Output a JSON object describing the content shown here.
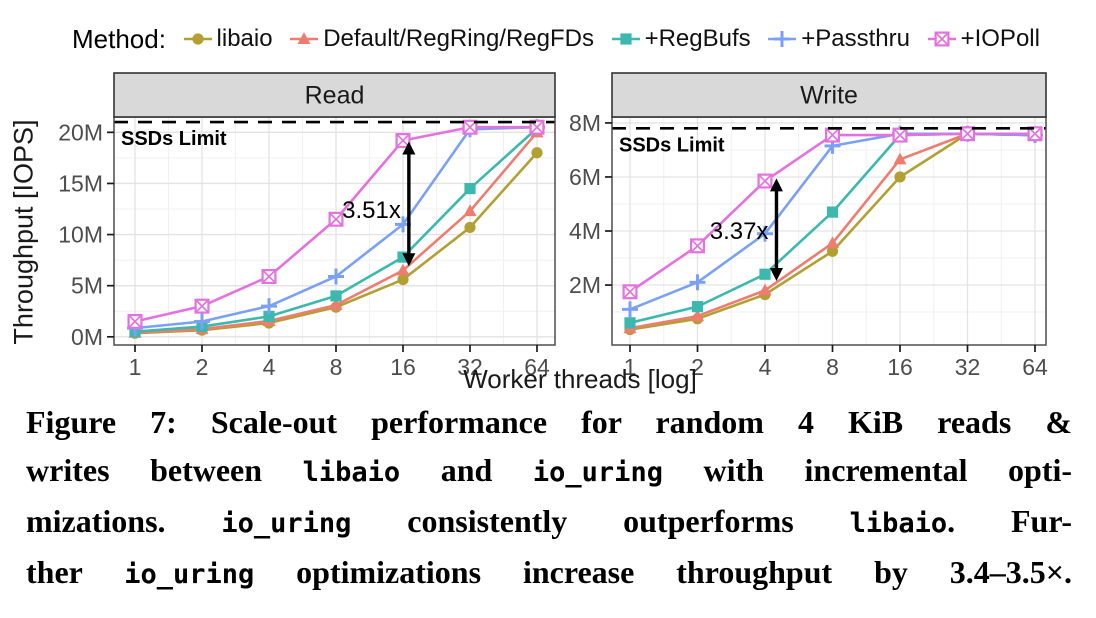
{
  "figure": {
    "legend": {
      "label": "Method:",
      "items": [
        {
          "name": "libaio",
          "marker": "circle",
          "color": "#b3a033"
        },
        {
          "name": "Default/RegRing/RegFDs",
          "marker": "triangle",
          "color": "#ee7d70"
        },
        {
          "name": "+RegBufs",
          "marker": "square",
          "color": "#3cb8ae"
        },
        {
          "name": "+Passthru",
          "marker": "plus",
          "color": "#7ba1f7"
        },
        {
          "name": "+IOPoll",
          "marker": "boxed-x",
          "color": "#e372df"
        }
      ]
    },
    "y_axis_title": "Throughput [IOPS]",
    "x_axis_title": "Worker threads [log]",
    "strip_color": "#d9d9d9",
    "limit_line_color": "#000000"
  },
  "chart_data": [
    {
      "type": "line",
      "title": "Read",
      "x": [
        1,
        2,
        4,
        8,
        16,
        32,
        64
      ],
      "x_scale": "log2",
      "xlabel": "Worker threads [log]",
      "ylabel": "Throughput [IOPS]",
      "unit": "M IOPS",
      "ylim": [
        -0.8,
        21.5
      ],
      "yticks": [
        0,
        5,
        10,
        15,
        20
      ],
      "ytick_labels": [
        "0M",
        "5M",
        "10M",
        "15M",
        "20M"
      ],
      "xtick_labels": [
        "1",
        "2",
        "4",
        "8",
        "16",
        "32",
        "64"
      ],
      "grid": true,
      "ssd_limit": {
        "value": 21,
        "label": "SSDs Limit"
      },
      "annotation": {
        "text": "3.51x",
        "x": 17,
        "y_top": 19.1,
        "y_bottom": 6.9,
        "label_y": 12.4
      },
      "series": [
        {
          "name": "libaio",
          "values": [
            0.35,
            0.65,
            1.35,
            2.9,
            5.6,
            10.7,
            18.0
          ]
        },
        {
          "name": "Default/RegRing/RegFDs",
          "values": [
            0.4,
            0.75,
            1.55,
            3.1,
            6.5,
            12.3,
            20.0
          ]
        },
        {
          "name": "+RegBufs",
          "values": [
            0.5,
            1.0,
            2.0,
            4.0,
            7.8,
            14.5,
            20.4
          ]
        },
        {
          "name": "+Passthru",
          "values": [
            0.85,
            1.5,
            3.0,
            5.9,
            11.0,
            20.3,
            20.5
          ]
        },
        {
          "name": "+IOPoll",
          "values": [
            1.5,
            3.0,
            5.9,
            11.5,
            19.2,
            20.5,
            20.5
          ]
        }
      ]
    },
    {
      "type": "line",
      "title": "Write",
      "x": [
        1,
        2,
        4,
        8,
        16,
        32,
        64
      ],
      "x_scale": "log2",
      "xlabel": "Worker threads [log]",
      "ylabel": "Throughput [IOPS]",
      "unit": "M IOPS",
      "ylim": [
        -0.22,
        8.22
      ],
      "yticks": [
        2,
        4,
        6,
        8
      ],
      "ytick_labels": [
        "2M",
        "4M",
        "6M",
        "8M"
      ],
      "xtick_labels": [
        "1",
        "2",
        "4",
        "8",
        "16",
        "32",
        "64"
      ],
      "grid": true,
      "ssd_limit": {
        "value": 7.8,
        "label": "SSDs Limit"
      },
      "annotation": {
        "text": "3.37x",
        "x": 4.5,
        "y_top": 5.95,
        "y_bottom": 2.15,
        "label_y": 4.0
      },
      "series": [
        {
          "name": "libaio",
          "values": [
            0.35,
            0.75,
            1.65,
            3.25,
            6.0,
            7.6,
            7.55
          ]
        },
        {
          "name": "Default/RegRing/RegFDs",
          "values": [
            0.4,
            0.85,
            1.8,
            3.55,
            6.65,
            7.6,
            7.55
          ]
        },
        {
          "name": "+RegBufs",
          "values": [
            0.6,
            1.2,
            2.4,
            4.7,
            7.55,
            7.6,
            7.55
          ]
        },
        {
          "name": "+Passthru",
          "values": [
            1.1,
            2.1,
            3.9,
            7.15,
            7.6,
            7.6,
            7.55
          ]
        },
        {
          "name": "+IOPoll",
          "values": [
            1.75,
            3.45,
            5.85,
            7.55,
            7.55,
            7.6,
            7.6
          ]
        }
      ]
    }
  ],
  "caption": {
    "lines": [
      {
        "segments": [
          {
            "text": "Figure 7: Scale-out performance for random 4 KiB reads &",
            "code": false
          }
        ]
      },
      {
        "segments": [
          {
            "text": "writes between ",
            "code": false
          },
          {
            "text": "libaio",
            "code": true
          },
          {
            "text": " and ",
            "code": false
          },
          {
            "text": "io_uring",
            "code": true
          },
          {
            "text": " with incremental opti-",
            "code": false
          }
        ]
      },
      {
        "segments": [
          {
            "text": "mizations. ",
            "code": false
          },
          {
            "text": "io_uring",
            "code": true
          },
          {
            "text": " consistently outperforms ",
            "code": false
          },
          {
            "text": "libaio",
            "code": true
          },
          {
            "text": ". Fur-",
            "code": false
          }
        ]
      },
      {
        "segments": [
          {
            "text": "ther ",
            "code": false
          },
          {
            "text": "io_uring",
            "code": true
          },
          {
            "text": " optimizations increase throughput by 3.4–3.5×.",
            "code": false
          }
        ]
      }
    ]
  }
}
